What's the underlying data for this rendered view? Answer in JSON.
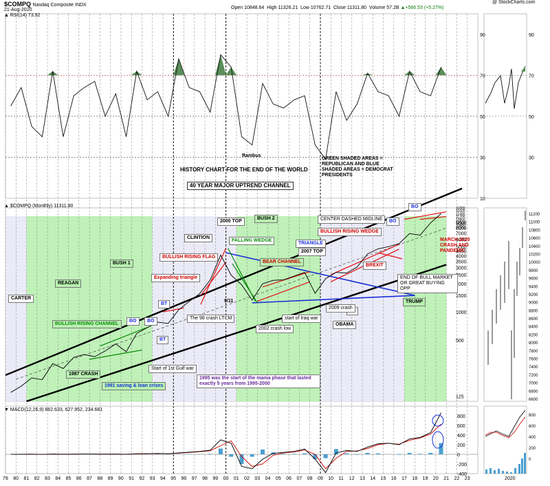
{
  "header": {
    "symbol": "$COMPQ",
    "name": "Nasdaq Composite INDX",
    "date": "21-Aug-2020",
    "open_label": "Open",
    "open": "10848.64",
    "high_label": "High",
    "high": "11326.21",
    "low_label": "Low",
    "low": "10762.71",
    "close_label": "Close",
    "close": "11311.80",
    "volume_label": "Volume",
    "volume": "57.2B",
    "change": "▲+566.53 (+5.27%)",
    "watermark": "@ StockCharts.com"
  },
  "panels": {
    "rsi_label": "RSI(14) 73.92",
    "price_label": "$COMPQ (Monthly) 11311.80",
    "macd_label": "MACD(12,26,9) 862.633, 627.952, 234.681"
  },
  "colors": {
    "republican": "#b8f0b0",
    "democrat": "#e9e9f6",
    "rsi_fill": "#5a8f5a",
    "macd_signal": "#cc0000",
    "histogram": "#4a9fd0",
    "channel": "#000000",
    "blue_line": "#1a2fd6",
    "red_line": "#e01010"
  },
  "annotations": {
    "rambus": "Rambus",
    "history": "HISTORY CHART FOR THE END OF THE WORLD",
    "legend_text": "GREEN SHADED AREAS = REPUBLICAN AND BLUE SHADED AREAS = DEMOCRAT PRESIDENTS",
    "channel_40yr": "40 YEAR MAJOR UPTREND CHANNEL",
    "carter": "CARTER",
    "reagan": "REAGAN",
    "bush1": "BUSH 1",
    "clinton": "CLINTION",
    "bush2": "BUSH 2",
    "obama": "OBAMA",
    "trump": "TRUMP",
    "y2000top": "2000 TOP",
    "falling_wedge": "FALLING WEDGE",
    "triangle": "TRIANGLE",
    "y2007top": "2007 TOP",
    "center_midline": "CENTER DASHED MIDLINE",
    "bullish_rising_wedge": "BULLISH RISING WEDGE",
    "bullish_rising_flag": "BULLISH RISING FLAG",
    "bear_channel": "BEAR CHANNEL",
    "brexit": "BREXIT",
    "expanding_triangle": "Expanding triangle",
    "nine_eleven": "9/11",
    "bt1": "BT",
    "bt2": "BT",
    "bt3": "BT",
    "bo1": "BO",
    "bo2": "BO",
    "bo3": "BO",
    "bo4": "BO",
    "crash98": "The 98 crash LTCM",
    "crash2002": "2002 crash low",
    "iraq": "start of Iraq war",
    "crash2009": "2009 crash",
    "bullish_rising_channel": "BULLISH RISING CHANNEL",
    "crash1987": "1987 CRASH",
    "savings_loan": "1991 saving & loan crises",
    "gulf_war": "Start of 1st Gulf war",
    "mania": "1995 was the start of the mania phase that lasted exactly 5 years from 1995-2000",
    "march2020": "MARCH 2020 CRASH AND PANDEMIC",
    "end_bull": "END OF BULL MARKET OR GREAT BUYING OPP"
  },
  "axis": {
    "year_labels": [
      "79",
      "80",
      "81",
      "82",
      "83",
      "84",
      "85",
      "86",
      "87",
      "88",
      "89",
      "90",
      "91",
      "92",
      "93",
      "94",
      "95",
      "96",
      "97",
      "98",
      "99",
      "00",
      "01",
      "02",
      "03",
      "04",
      "05",
      "06",
      "07",
      "08",
      "09",
      "10",
      "11",
      "12",
      "13",
      "14",
      "15",
      "16",
      "17",
      "18",
      "19",
      "20",
      "21",
      "22",
      "23"
    ],
    "rsi_ticks": [
      "90",
      "70",
      "50",
      "30",
      "10"
    ],
    "price_ticks": [
      "11000",
      "10000",
      "9000",
      "8000",
      "7000",
      "6000",
      "5000",
      "4500",
      "4000",
      "3500",
      "3000",
      "2500",
      "2000",
      "1500",
      "1000",
      "500",
      "125"
    ],
    "price_ticks_small": [
      "11800",
      "11600",
      "11400",
      "11200",
      "10800",
      "10600",
      "10400",
      "10200"
    ],
    "macd_ticks": [
      "800",
      "600",
      "400",
      "200",
      "0",
      "-200",
      "-400"
    ],
    "right_rsi_ticks": [
      "90",
      "70",
      "50",
      "30"
    ],
    "right_price_ticks": [
      "11200",
      "11000",
      "10800",
      "10600",
      "10400",
      "10200",
      "10000",
      "9800",
      "9600",
      "9400",
      "9200",
      "9000",
      "8800",
      "8600",
      "8400",
      "8200",
      "8000",
      "7800",
      "7600",
      "7400",
      "7200",
      "7000",
      "6800",
      "6600"
    ],
    "right_macd_ticks": [
      "800",
      "600",
      "400",
      "200",
      "0"
    ],
    "right_year": "2020"
  },
  "chart_data": [
    {
      "type": "line",
      "title": "RSI(14) 73.92",
      "x": [
        1979,
        1980,
        1981,
        1982,
        1983,
        1984,
        1985,
        1986,
        1987,
        1988,
        1989,
        1990,
        1991,
        1992,
        1993,
        1994,
        1995,
        1996,
        1997,
        1998,
        1999,
        2000,
        2001,
        2002,
        2003,
        2004,
        2005,
        2006,
        2007,
        2008,
        2009,
        2010,
        2011,
        2012,
        2013,
        2014,
        2015,
        2016,
        2017,
        2018,
        2019,
        2020
      ],
      "values": [
        55,
        64,
        45,
        40,
        72,
        40,
        60,
        64,
        67,
        50,
        61,
        40,
        72,
        58,
        62,
        50,
        78,
        64,
        62,
        52,
        80,
        74,
        40,
        36,
        66,
        56,
        54,
        58,
        60,
        36,
        29,
        62,
        48,
        56,
        71,
        62,
        60,
        50,
        72,
        62,
        60,
        74
      ],
      "ylim": [
        10,
        100
      ]
    },
    {
      "type": "line",
      "title": "$COMPQ (Monthly) 11311.80",
      "x": [
        1979,
        1980,
        1981,
        1982,
        1983,
        1984,
        1985,
        1986,
        1987,
        1988,
        1989,
        1990,
        1991,
        1992,
        1993,
        1994,
        1995,
        1996,
        1997,
        1998,
        1999,
        2000,
        2001,
        2002,
        2003,
        2004,
        2005,
        2006,
        2007,
        2008,
        2009,
        2010,
        2011,
        2012,
        2013,
        2014,
        2015,
        2016,
        2017,
        2018,
        2019,
        2020
      ],
      "values": [
        137,
        160,
        196,
        188,
        279,
        247,
        325,
        349,
        331,
        381,
        454,
        374,
        586,
        677,
        776,
        751,
        1052,
        1291,
        1570,
        2193,
        4069,
        2470,
        1950,
        1335,
        2003,
        2175,
        2205,
        2415,
        2652,
        1577,
        2269,
        2653,
        2605,
        3020,
        4177,
        4736,
        5007,
        5383,
        6903,
        6635,
        8973,
        11311
      ],
      "scale": "log"
    },
    {
      "type": "line",
      "title": "MACD(12,26,9) 862.633, 627.952, 234.681",
      "x": [
        1979,
        1980,
        1981,
        1982,
        1983,
        1984,
        1985,
        1986,
        1987,
        1988,
        1989,
        1990,
        1991,
        1992,
        1993,
        1994,
        1995,
        1996,
        1997,
        1998,
        1999,
        2000,
        2001,
        2002,
        2003,
        2004,
        2005,
        2006,
        2007,
        2008,
        2009,
        2010,
        2011,
        2012,
        2013,
        2014,
        2015,
        2016,
        2017,
        2018,
        2019,
        2020
      ],
      "series": [
        {
          "name": "MACD",
          "values": [
            0,
            2,
            3,
            -1,
            6,
            2,
            4,
            7,
            6,
            3,
            6,
            0,
            12,
            13,
            18,
            10,
            30,
            45,
            60,
            85,
            300,
            230,
            -250,
            -300,
            -100,
            20,
            40,
            60,
            110,
            -100,
            -380,
            30,
            80,
            60,
            150,
            220,
            230,
            200,
            320,
            350,
            450,
            862
          ]
        },
        {
          "name": "Signal",
          "values": [
            0,
            1,
            2,
            0,
            4,
            3,
            4,
            6,
            6,
            4,
            5,
            2,
            9,
            12,
            16,
            12,
            24,
            38,
            55,
            75,
            180,
            280,
            -50,
            -250,
            -200,
            -20,
            30,
            50,
            90,
            0,
            -300,
            -80,
            60,
            70,
            120,
            200,
            230,
            210,
            290,
            340,
            420,
            628
          ]
        }
      ],
      "ylim": [
        -400,
        1000
      ]
    }
  ]
}
